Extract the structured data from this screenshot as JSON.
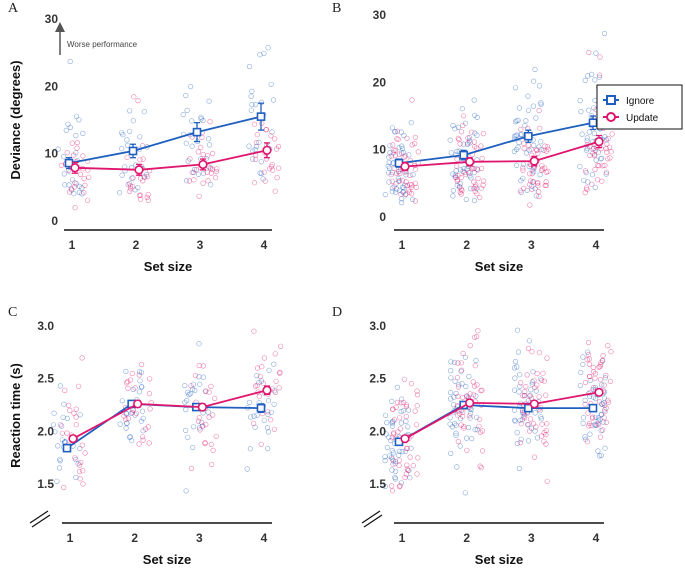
{
  "colors": {
    "ignore": "#1f5fbf",
    "update": "#e0156e",
    "axis": "#111111"
  },
  "legend": {
    "ignore_label": "Ignore",
    "update_label": "Update"
  },
  "chart_data": [
    {
      "id": "A",
      "type": "line",
      "letter": "A",
      "ylabel": "Deviance (degrees)",
      "xlabel": "Set size",
      "categories": [
        "1",
        "2",
        "3",
        "4"
      ],
      "ylim": [
        0,
        30
      ],
      "yticks": [
        "0",
        "10",
        "20",
        "30"
      ],
      "annotation": "Worse performance",
      "series": [
        {
          "name": "Ignore",
          "values": [
            8.6,
            10.4,
            13.2,
            15.5
          ],
          "err": [
            0.8,
            1.0,
            1.4,
            2.0
          ]
        },
        {
          "name": "Update",
          "values": [
            7.9,
            7.6,
            8.4,
            10.5
          ],
          "err": [
            0.8,
            0.8,
            0.8,
            1.1
          ]
        }
      ]
    },
    {
      "id": "B",
      "type": "line",
      "letter": "B",
      "ylabel": "",
      "xlabel": "Set size",
      "categories": [
        "1",
        "2",
        "3",
        "4"
      ],
      "ylim": [
        0,
        30
      ],
      "yticks": [
        "0",
        "10",
        "20",
        "30"
      ],
      "series": [
        {
          "name": "Ignore",
          "values": [
            8.0,
            9.2,
            12.0,
            14.0
          ],
          "err": [
            0.6,
            0.7,
            0.9,
            1.0
          ]
        },
        {
          "name": "Update",
          "values": [
            7.5,
            8.2,
            8.3,
            11.2
          ],
          "err": [
            0.6,
            0.6,
            0.7,
            0.9
          ]
        }
      ]
    },
    {
      "id": "C",
      "type": "line",
      "letter": "C",
      "ylabel": "Reaction time (s)",
      "xlabel": "Set size",
      "categories": [
        "1",
        "2",
        "3",
        "4"
      ],
      "ylim": [
        1.3,
        3.0
      ],
      "yticks": [
        "1.5",
        "2.0",
        "2.5",
        "3.0"
      ],
      "series": [
        {
          "name": "Ignore",
          "values": [
            1.84,
            2.26,
            2.23,
            2.22
          ],
          "err": [
            0.03,
            0.03,
            0.03,
            0.04
          ]
        },
        {
          "name": "Update",
          "values": [
            1.93,
            2.26,
            2.23,
            2.39
          ],
          "err": [
            0.03,
            0.03,
            0.03,
            0.04
          ]
        }
      ]
    },
    {
      "id": "D",
      "type": "line",
      "letter": "D",
      "ylabel": "",
      "xlabel": "Set size",
      "categories": [
        "1",
        "2",
        "3",
        "4"
      ],
      "ylim": [
        1.3,
        3.0
      ],
      "yticks": [
        "1.5",
        "2.0",
        "2.5",
        "3.0"
      ],
      "series": [
        {
          "name": "Ignore",
          "values": [
            1.9,
            2.25,
            2.22,
            2.22
          ],
          "err": [
            0.02,
            0.02,
            0.02,
            0.03
          ]
        },
        {
          "name": "Update",
          "values": [
            1.93,
            2.27,
            2.26,
            2.37
          ],
          "err": [
            0.02,
            0.02,
            0.02,
            0.03
          ]
        }
      ]
    }
  ]
}
